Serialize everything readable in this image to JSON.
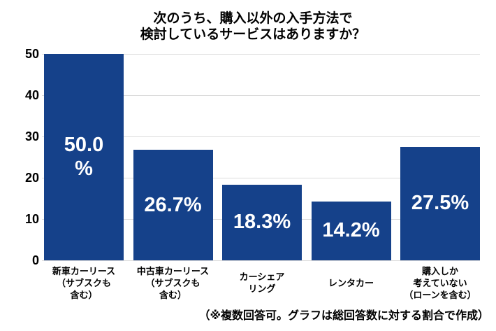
{
  "title": {
    "line1": "次のうち、購入以外の入手方法で",
    "line2": "検討しているサービスはありますか？"
  },
  "footnote": "（※複数回答可。グラフは総回答数に対する割合で作成）",
  "colors": {
    "bar": "#15418A",
    "bar_label": "#FFFFFF",
    "gridline": "#DBDBDB",
    "text": "#000000",
    "background": "#FFFFFF"
  },
  "chart_data": {
    "type": "bar",
    "title": "次のうち、購入以外の入手方法で\n検討しているサービスはありますか？",
    "categories": [
      "新車カーリース\n（サブスクも\n含む）",
      "中古車カーリース\n（サブスクも\n含む）",
      "カーシェア\nリング",
      "レンタカー",
      "購入しか\n考えていない\n（ローンを含む）"
    ],
    "values": [
      50.0,
      26.7,
      18.3,
      14.2,
      27.5
    ],
    "bar_labels": [
      "50.0\n%",
      "26.7%",
      "18.3%",
      "14.2%",
      "27.5%"
    ],
    "xlabel": "",
    "ylabel": "",
    "ylim": [
      0,
      50
    ],
    "yticks": [
      0,
      10,
      20,
      30,
      40,
      50
    ],
    "grid": true,
    "legend": false,
    "note": "（※複数回答可。グラフは総回答数に対する割合で作成）"
  }
}
